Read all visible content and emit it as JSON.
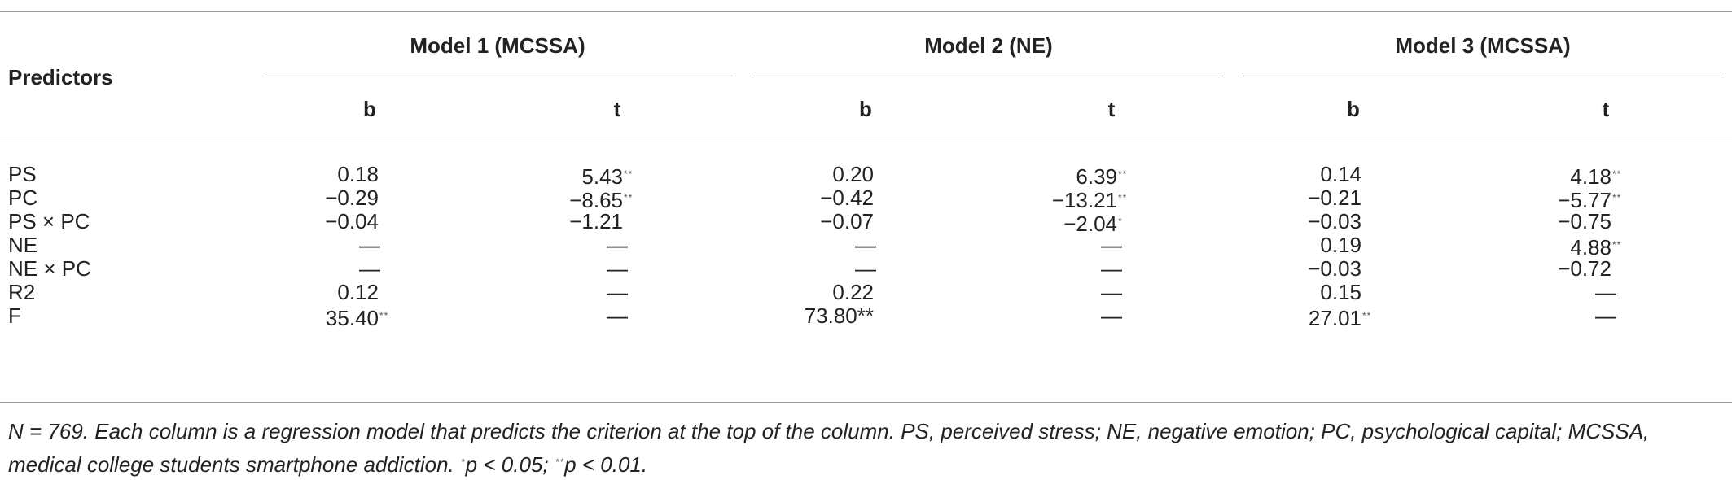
{
  "table": {
    "predictors_header": "Predictors",
    "models": [
      {
        "title": "Model 1 (MCSSA)",
        "cols": [
          "b",
          "t"
        ]
      },
      {
        "title": "Model 2 (NE)",
        "cols": [
          "b",
          "t"
        ]
      },
      {
        "title": "Model 3 (MCSSA)",
        "cols": [
          "b",
          "t"
        ]
      }
    ],
    "rows": [
      {
        "label": "PS",
        "cells": [
          {
            "v": "0.18",
            "s": ""
          },
          {
            "v": "5.43",
            "s": "**"
          },
          {
            "v": "0.20",
            "s": ""
          },
          {
            "v": "6.39",
            "s": "**"
          },
          {
            "v": "0.14",
            "s": ""
          },
          {
            "v": "4.18",
            "s": "**"
          }
        ]
      },
      {
        "label": "PC",
        "cells": [
          {
            "v": "−0.29",
            "s": ""
          },
          {
            "v": "−8.65",
            "s": "**"
          },
          {
            "v": "−0.42",
            "s": ""
          },
          {
            "v": "−13.21",
            "s": "**"
          },
          {
            "v": "−0.21",
            "s": ""
          },
          {
            "v": "−5.77",
            "s": "**"
          }
        ]
      },
      {
        "label": "PS × PC",
        "cells": [
          {
            "v": "−0.04",
            "s": ""
          },
          {
            "v": "−1.21",
            "s": ""
          },
          {
            "v": "−0.07",
            "s": ""
          },
          {
            "v": "−2.04",
            "s": "*"
          },
          {
            "v": "−0.03",
            "s": ""
          },
          {
            "v": "−0.75",
            "s": ""
          }
        ]
      },
      {
        "label": "NE",
        "cells": [
          {
            "v": "—",
            "s": ""
          },
          {
            "v": "—",
            "s": ""
          },
          {
            "v": "—",
            "s": ""
          },
          {
            "v": "—",
            "s": ""
          },
          {
            "v": "0.19",
            "s": ""
          },
          {
            "v": "4.88",
            "s": "**"
          }
        ]
      },
      {
        "label": "NE × PC",
        "cells": [
          {
            "v": "—",
            "s": ""
          },
          {
            "v": "—",
            "s": ""
          },
          {
            "v": "—",
            "s": ""
          },
          {
            "v": "—",
            "s": ""
          },
          {
            "v": "−0.03",
            "s": ""
          },
          {
            "v": "−0.72",
            "s": ""
          }
        ]
      },
      {
        "label": "R2",
        "cells": [
          {
            "v": "0.12",
            "s": ""
          },
          {
            "v": "—",
            "s": ""
          },
          {
            "v": "0.22",
            "s": ""
          },
          {
            "v": "—",
            "s": ""
          },
          {
            "v": "0.15",
            "s": ""
          },
          {
            "v": "—",
            "s": ""
          }
        ]
      },
      {
        "label": "F",
        "cells": [
          {
            "v": "35.40",
            "s": "**"
          },
          {
            "v": "—",
            "s": ""
          },
          {
            "v": "73.80**",
            "s": ""
          },
          {
            "v": "—",
            "s": ""
          },
          {
            "v": "27.01",
            "s": "**"
          },
          {
            "v": "—",
            "s": ""
          }
        ]
      }
    ]
  },
  "note": {
    "line1": "N = 769. Each column is a regression model that predicts the criterion at the top of the column. PS, perceived stress; NE, negative emotion; PC, psychological capital; MCSSA,",
    "line2_a": "medical college students smartphone addiction. ",
    "star1": "*",
    "line2_b": "p < 0.05; ",
    "star2": "**",
    "line2_c": "p < 0.01."
  }
}
